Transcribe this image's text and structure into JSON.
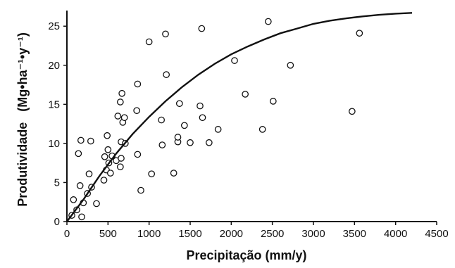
{
  "chart_data": {
    "type": "scatter",
    "title": "",
    "xlabel": "Precipitação  (mm/y)",
    "ylabel": "Produtividade   (Mg•ha⁻¹•y⁻¹)",
    "xlim": [
      0,
      4500
    ],
    "ylim": [
      0,
      27
    ],
    "x_ticks": [
      0,
      500,
      1000,
      1500,
      2000,
      2500,
      3000,
      3500,
      4000,
      4500
    ],
    "y_ticks": [
      0,
      5,
      10,
      15,
      20,
      25
    ],
    "grid": false,
    "legend": "none",
    "colors": {
      "axis": "#111111",
      "points": "#111111",
      "curve": "#111111"
    },
    "series": [
      {
        "type": "scatter",
        "points": [
          [
            60,
            0.8
          ],
          [
            80,
            2.8
          ],
          [
            120,
            1.5
          ],
          [
            140,
            8.7
          ],
          [
            160,
            4.6
          ],
          [
            170,
            10.4
          ],
          [
            180,
            0.6
          ],
          [
            200,
            2.4
          ],
          [
            270,
            6.1
          ],
          [
            290,
            10.3
          ],
          [
            300,
            4.4
          ],
          [
            250,
            3.6
          ],
          [
            360,
            2.3
          ],
          [
            450,
            5.3
          ],
          [
            460,
            8.3
          ],
          [
            480,
            6.6
          ],
          [
            490,
            11.0
          ],
          [
            500,
            9.2
          ],
          [
            510,
            7.5
          ],
          [
            530,
            6.2
          ],
          [
            550,
            8.4
          ],
          [
            600,
            7.8
          ],
          [
            620,
            13.5
          ],
          [
            650,
            15.3
          ],
          [
            660,
            10.2
          ],
          [
            670,
            16.4
          ],
          [
            660,
            8.1
          ],
          [
            650,
            7.0
          ],
          [
            680,
            12.7
          ],
          [
            700,
            13.3
          ],
          [
            710,
            10.0
          ],
          [
            860,
            17.6
          ],
          [
            850,
            14.2
          ],
          [
            860,
            8.6
          ],
          [
            900,
            4.0
          ],
          [
            1000,
            23.0
          ],
          [
            1030,
            6.1
          ],
          [
            1150,
            13.0
          ],
          [
            1160,
            9.8
          ],
          [
            1200,
            24.0
          ],
          [
            1210,
            18.8
          ],
          [
            1300,
            6.2
          ],
          [
            1350,
            10.2
          ],
          [
            1350,
            10.8
          ],
          [
            1370,
            15.1
          ],
          [
            1430,
            12.3
          ],
          [
            1500,
            10.1
          ],
          [
            1620,
            14.8
          ],
          [
            1640,
            24.7
          ],
          [
            1650,
            13.3
          ],
          [
            1730,
            10.1
          ],
          [
            1840,
            11.8
          ],
          [
            2040,
            20.6
          ],
          [
            2170,
            16.3
          ],
          [
            2380,
            11.8
          ],
          [
            2450,
            25.6
          ],
          [
            2510,
            15.4
          ],
          [
            2720,
            20.0
          ],
          [
            3470,
            14.1
          ],
          [
            3560,
            24.1
          ]
        ]
      },
      {
        "type": "line",
        "x": [
          0,
          200,
          400,
          600,
          800,
          1000,
          1200,
          1400,
          1600,
          1800,
          2000,
          2200,
          2400,
          2600,
          2800,
          3000,
          3200,
          3400,
          3600,
          3800,
          4000,
          4200
        ],
        "y": [
          0,
          2.8,
          5.9,
          8.7,
          11.2,
          13.4,
          15.4,
          17.2,
          18.8,
          20.2,
          21.4,
          22.4,
          23.3,
          24.1,
          24.7,
          25.3,
          25.7,
          26.0,
          26.25,
          26.45,
          26.6,
          26.7
        ]
      }
    ]
  }
}
